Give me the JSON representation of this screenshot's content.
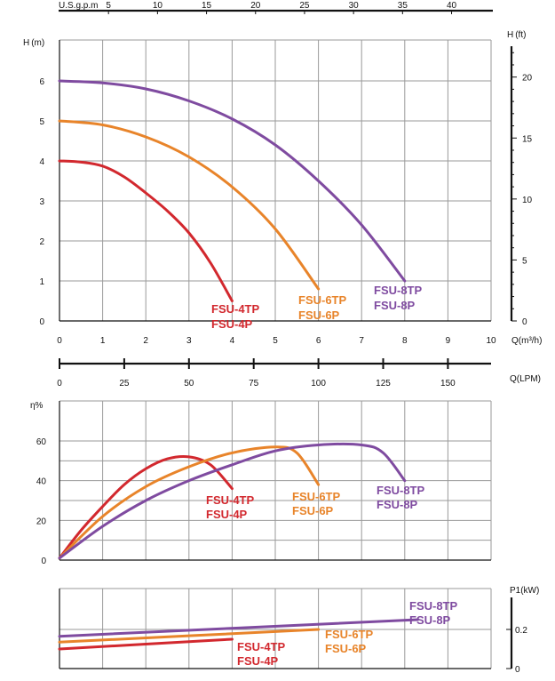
{
  "colors": {
    "grid": "#9a9a9a",
    "axis": "#111111",
    "red": "#d2282e",
    "orange": "#e8842a",
    "purple": "#7f4ba0"
  },
  "top_axis": {
    "label": "U.S.g.p.m",
    "ticks": [
      "5",
      "10",
      "15",
      "20",
      "25",
      "30",
      "35",
      "40"
    ]
  },
  "head_chart": {
    "ylabel_left": "H (m)",
    "ylabel_right": "H (ft)",
    "xlabel": "Q(m³/h)",
    "left_ticks": [
      "0",
      "1",
      "2",
      "3",
      "4",
      "5",
      "6"
    ],
    "right_ticks": [
      "0",
      "5",
      "10",
      "15",
      "20"
    ],
    "x_ticks": [
      "0",
      "1",
      "2",
      "3",
      "4",
      "5",
      "6",
      "7",
      "8",
      "9",
      "10"
    ]
  },
  "lpm_axis": {
    "label": "Q(LPM)",
    "ticks": [
      "0",
      "25",
      "50",
      "75",
      "100",
      "125",
      "150"
    ]
  },
  "eff_chart": {
    "ylabel": "η%",
    "ticks": [
      "0",
      "20",
      "40",
      "60"
    ]
  },
  "power_chart": {
    "ylabel": "P1(kW)",
    "ticks": [
      "0",
      "0.2"
    ]
  },
  "chart_data": [
    {
      "type": "line",
      "name": "head",
      "xlabel": "Q(m³/h)",
      "ylabel": "H (m)",
      "xlim": [
        0,
        10
      ],
      "ylim": [
        0,
        6
      ],
      "series": [
        {
          "labels": [
            "FSU-4TP",
            "FSU-4P"
          ],
          "color": "#d2282e",
          "x": [
            0,
            0.5,
            1,
            1.5,
            2,
            2.5,
            3,
            3.5,
            4
          ],
          "y": [
            4.0,
            3.97,
            3.87,
            3.6,
            3.2,
            2.75,
            2.2,
            1.45,
            0.5
          ]
        },
        {
          "labels": [
            "FSU-6TP",
            "FSU-6P"
          ],
          "color": "#e8842a",
          "x": [
            0,
            1,
            2,
            3,
            4,
            5,
            6
          ],
          "y": [
            5.0,
            4.9,
            4.6,
            4.1,
            3.35,
            2.3,
            0.8
          ]
        },
        {
          "labels": [
            "FSU-8TP",
            "FSU-8P"
          ],
          "color": "#7f4ba0",
          "x": [
            0,
            1,
            2,
            3,
            4,
            5,
            6,
            7,
            8
          ],
          "y": [
            6.0,
            5.95,
            5.8,
            5.5,
            5.05,
            4.4,
            3.5,
            2.4,
            1.0
          ]
        }
      ]
    },
    {
      "type": "line",
      "name": "efficiency",
      "ylabel": "η%",
      "xlim": [
        0,
        10
      ],
      "ylim": [
        0,
        70
      ],
      "series": [
        {
          "labels": [
            "FSU-4TP",
            "FSU-4P"
          ],
          "color": "#d2282e",
          "x": [
            0,
            0.5,
            1,
            1.5,
            2,
            2.5,
            3,
            3.5,
            4
          ],
          "y": [
            1,
            15,
            27,
            38,
            46,
            51,
            52,
            48,
            36
          ]
        },
        {
          "labels": [
            "FSU-6TP",
            "FSU-6P"
          ],
          "color": "#e8842a",
          "x": [
            0,
            1,
            2,
            3,
            4,
            5,
            5.5,
            6
          ],
          "y": [
            1,
            22,
            37,
            47,
            54,
            57,
            54,
            38
          ]
        },
        {
          "labels": [
            "FSU-8TP",
            "FSU-8P"
          ],
          "color": "#7f4ba0",
          "x": [
            0,
            1,
            2,
            3,
            4,
            5,
            6,
            7,
            7.5,
            8
          ],
          "y": [
            1,
            17,
            30,
            40,
            48,
            55,
            58,
            58,
            54,
            40
          ]
        }
      ]
    },
    {
      "type": "line",
      "name": "power",
      "ylabel": "P1(kW)",
      "xlim": [
        0,
        10
      ],
      "ylim": [
        0,
        0.35
      ],
      "series": [
        {
          "labels": [
            "FSU-4TP",
            "FSU-4P"
          ],
          "color": "#d2282e",
          "x": [
            0,
            4
          ],
          "y": [
            0.1,
            0.15
          ]
        },
        {
          "labels": [
            "FSU-6TP",
            "FSU-6P"
          ],
          "color": "#e8842a",
          "x": [
            0,
            6
          ],
          "y": [
            0.135,
            0.2
          ]
        },
        {
          "labels": [
            "FSU-8TP",
            "FSU-8P"
          ],
          "color": "#7f4ba0",
          "x": [
            0,
            8.3
          ],
          "y": [
            0.165,
            0.25
          ]
        }
      ]
    }
  ]
}
